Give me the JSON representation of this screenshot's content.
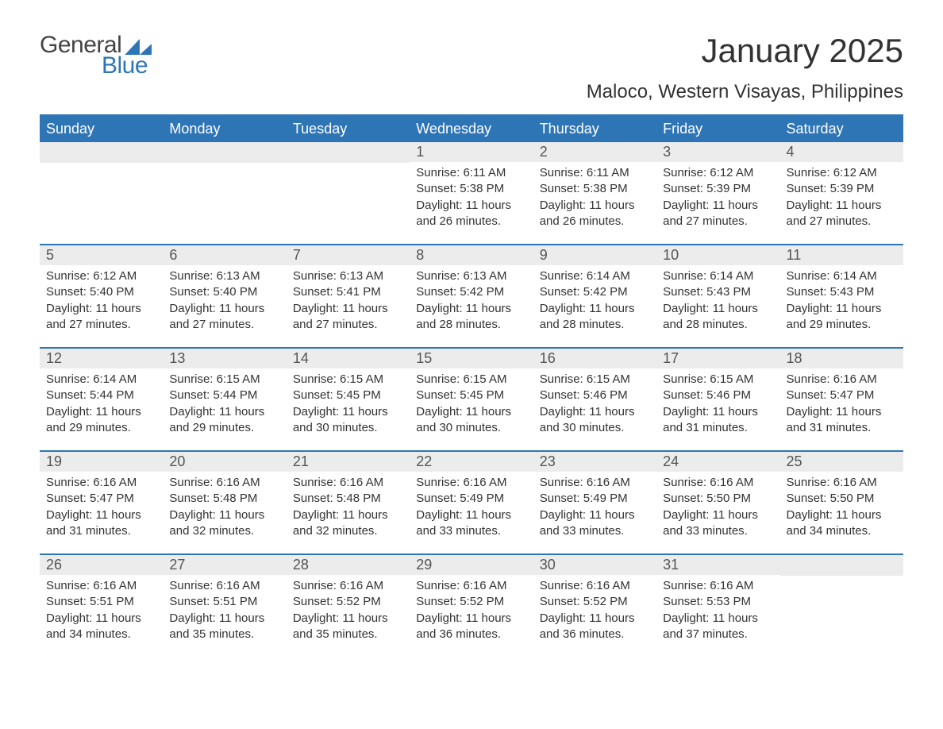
{
  "logo": {
    "text1": "General",
    "text2": "Blue"
  },
  "title": "January 2025",
  "location": "Maloco, Western Visayas, Philippines",
  "colors": {
    "brand": "#2e75b6",
    "daybar": "#ececec",
    "text": "#333333",
    "bg": "#ffffff"
  },
  "typography": {
    "title_fontsize": 42,
    "location_fontsize": 24,
    "dow_fontsize": 18,
    "daynum_fontsize": 18,
    "body_fontsize": 15
  },
  "days_of_week": [
    "Sunday",
    "Monday",
    "Tuesday",
    "Wednesday",
    "Thursday",
    "Friday",
    "Saturday"
  ],
  "layout": {
    "columns": 7,
    "rows": 5,
    "leading_blanks": 3,
    "trailing_blanks": 1
  },
  "days": [
    {
      "n": "1",
      "sunrise": "Sunrise: 6:11 AM",
      "sunset": "Sunset: 5:38 PM",
      "dl1": "Daylight: 11 hours",
      "dl2": "and 26 minutes."
    },
    {
      "n": "2",
      "sunrise": "Sunrise: 6:11 AM",
      "sunset": "Sunset: 5:38 PM",
      "dl1": "Daylight: 11 hours",
      "dl2": "and 26 minutes."
    },
    {
      "n": "3",
      "sunrise": "Sunrise: 6:12 AM",
      "sunset": "Sunset: 5:39 PM",
      "dl1": "Daylight: 11 hours",
      "dl2": "and 27 minutes."
    },
    {
      "n": "4",
      "sunrise": "Sunrise: 6:12 AM",
      "sunset": "Sunset: 5:39 PM",
      "dl1": "Daylight: 11 hours",
      "dl2": "and 27 minutes."
    },
    {
      "n": "5",
      "sunrise": "Sunrise: 6:12 AM",
      "sunset": "Sunset: 5:40 PM",
      "dl1": "Daylight: 11 hours",
      "dl2": "and 27 minutes."
    },
    {
      "n": "6",
      "sunrise": "Sunrise: 6:13 AM",
      "sunset": "Sunset: 5:40 PM",
      "dl1": "Daylight: 11 hours",
      "dl2": "and 27 minutes."
    },
    {
      "n": "7",
      "sunrise": "Sunrise: 6:13 AM",
      "sunset": "Sunset: 5:41 PM",
      "dl1": "Daylight: 11 hours",
      "dl2": "and 27 minutes."
    },
    {
      "n": "8",
      "sunrise": "Sunrise: 6:13 AM",
      "sunset": "Sunset: 5:42 PM",
      "dl1": "Daylight: 11 hours",
      "dl2": "and 28 minutes."
    },
    {
      "n": "9",
      "sunrise": "Sunrise: 6:14 AM",
      "sunset": "Sunset: 5:42 PM",
      "dl1": "Daylight: 11 hours",
      "dl2": "and 28 minutes."
    },
    {
      "n": "10",
      "sunrise": "Sunrise: 6:14 AM",
      "sunset": "Sunset: 5:43 PM",
      "dl1": "Daylight: 11 hours",
      "dl2": "and 28 minutes."
    },
    {
      "n": "11",
      "sunrise": "Sunrise: 6:14 AM",
      "sunset": "Sunset: 5:43 PM",
      "dl1": "Daylight: 11 hours",
      "dl2": "and 29 minutes."
    },
    {
      "n": "12",
      "sunrise": "Sunrise: 6:14 AM",
      "sunset": "Sunset: 5:44 PM",
      "dl1": "Daylight: 11 hours",
      "dl2": "and 29 minutes."
    },
    {
      "n": "13",
      "sunrise": "Sunrise: 6:15 AM",
      "sunset": "Sunset: 5:44 PM",
      "dl1": "Daylight: 11 hours",
      "dl2": "and 29 minutes."
    },
    {
      "n": "14",
      "sunrise": "Sunrise: 6:15 AM",
      "sunset": "Sunset: 5:45 PM",
      "dl1": "Daylight: 11 hours",
      "dl2": "and 30 minutes."
    },
    {
      "n": "15",
      "sunrise": "Sunrise: 6:15 AM",
      "sunset": "Sunset: 5:45 PM",
      "dl1": "Daylight: 11 hours",
      "dl2": "and 30 minutes."
    },
    {
      "n": "16",
      "sunrise": "Sunrise: 6:15 AM",
      "sunset": "Sunset: 5:46 PM",
      "dl1": "Daylight: 11 hours",
      "dl2": "and 30 minutes."
    },
    {
      "n": "17",
      "sunrise": "Sunrise: 6:15 AM",
      "sunset": "Sunset: 5:46 PM",
      "dl1": "Daylight: 11 hours",
      "dl2": "and 31 minutes."
    },
    {
      "n": "18",
      "sunrise": "Sunrise: 6:16 AM",
      "sunset": "Sunset: 5:47 PM",
      "dl1": "Daylight: 11 hours",
      "dl2": "and 31 minutes."
    },
    {
      "n": "19",
      "sunrise": "Sunrise: 6:16 AM",
      "sunset": "Sunset: 5:47 PM",
      "dl1": "Daylight: 11 hours",
      "dl2": "and 31 minutes."
    },
    {
      "n": "20",
      "sunrise": "Sunrise: 6:16 AM",
      "sunset": "Sunset: 5:48 PM",
      "dl1": "Daylight: 11 hours",
      "dl2": "and 32 minutes."
    },
    {
      "n": "21",
      "sunrise": "Sunrise: 6:16 AM",
      "sunset": "Sunset: 5:48 PM",
      "dl1": "Daylight: 11 hours",
      "dl2": "and 32 minutes."
    },
    {
      "n": "22",
      "sunrise": "Sunrise: 6:16 AM",
      "sunset": "Sunset: 5:49 PM",
      "dl1": "Daylight: 11 hours",
      "dl2": "and 33 minutes."
    },
    {
      "n": "23",
      "sunrise": "Sunrise: 6:16 AM",
      "sunset": "Sunset: 5:49 PM",
      "dl1": "Daylight: 11 hours",
      "dl2": "and 33 minutes."
    },
    {
      "n": "24",
      "sunrise": "Sunrise: 6:16 AM",
      "sunset": "Sunset: 5:50 PM",
      "dl1": "Daylight: 11 hours",
      "dl2": "and 33 minutes."
    },
    {
      "n": "25",
      "sunrise": "Sunrise: 6:16 AM",
      "sunset": "Sunset: 5:50 PM",
      "dl1": "Daylight: 11 hours",
      "dl2": "and 34 minutes."
    },
    {
      "n": "26",
      "sunrise": "Sunrise: 6:16 AM",
      "sunset": "Sunset: 5:51 PM",
      "dl1": "Daylight: 11 hours",
      "dl2": "and 34 minutes."
    },
    {
      "n": "27",
      "sunrise": "Sunrise: 6:16 AM",
      "sunset": "Sunset: 5:51 PM",
      "dl1": "Daylight: 11 hours",
      "dl2": "and 35 minutes."
    },
    {
      "n": "28",
      "sunrise": "Sunrise: 6:16 AM",
      "sunset": "Sunset: 5:52 PM",
      "dl1": "Daylight: 11 hours",
      "dl2": "and 35 minutes."
    },
    {
      "n": "29",
      "sunrise": "Sunrise: 6:16 AM",
      "sunset": "Sunset: 5:52 PM",
      "dl1": "Daylight: 11 hours",
      "dl2": "and 36 minutes."
    },
    {
      "n": "30",
      "sunrise": "Sunrise: 6:16 AM",
      "sunset": "Sunset: 5:52 PM",
      "dl1": "Daylight: 11 hours",
      "dl2": "and 36 minutes."
    },
    {
      "n": "31",
      "sunrise": "Sunrise: 6:16 AM",
      "sunset": "Sunset: 5:53 PM",
      "dl1": "Daylight: 11 hours",
      "dl2": "and 37 minutes."
    }
  ]
}
